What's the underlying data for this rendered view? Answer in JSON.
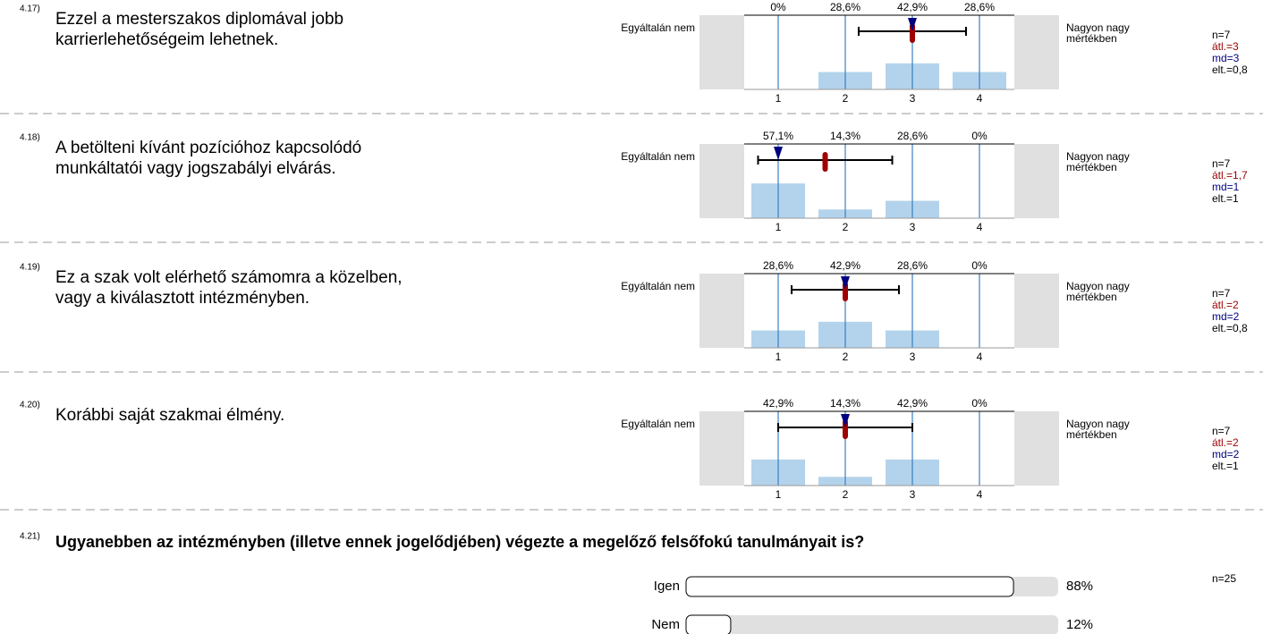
{
  "items": [
    {
      "number": "4.17)",
      "text": [
        "Ezzel a mesterszakos diplomával jobb",
        "karrierlehetőségeim lehetnek."
      ],
      "values": [
        0,
        28.6,
        42.9,
        28.6
      ],
      "value_labels": [
        "0%",
        "28,6%",
        "42,9%",
        "28,6%"
      ],
      "scale": [
        1,
        2,
        3,
        4
      ],
      "left_label": "Egyáltalán nem",
      "right_label": [
        "Nagyon nagy",
        "mértékben"
      ],
      "n": "n=7",
      "mean": {
        "value": 3,
        "label": "átl.=3"
      },
      "median": {
        "value": 3,
        "label": "md=3"
      },
      "sd": {
        "value": 0.8,
        "label": "elt.=0,8"
      }
    },
    {
      "number": "4.18)",
      "text": [
        "A betölteni kívánt pozícióhoz kapcsolódó",
        "munkáltatói vagy jogszabályi elvárás."
      ],
      "values": [
        57.1,
        14.3,
        28.6,
        0
      ],
      "value_labels": [
        "57,1%",
        "14,3%",
        "28,6%",
        "0%"
      ],
      "scale": [
        1,
        2,
        3,
        4
      ],
      "left_label": "Egyáltalán nem",
      "right_label": [
        "Nagyon nagy",
        "mértékben"
      ],
      "n": "n=7",
      "mean": {
        "value": 1.7,
        "label": "átl.=1,7"
      },
      "median": {
        "value": 1,
        "label": "md=1"
      },
      "sd": {
        "value": 1,
        "label": "elt.=1"
      }
    },
    {
      "number": "4.19)",
      "text": [
        "Ez a szak volt elérhető számomra a közelben,",
        "vagy a kiválasztott intézményben."
      ],
      "values": [
        28.6,
        42.9,
        28.6,
        0
      ],
      "value_labels": [
        "28,6%",
        "42,9%",
        "28,6%",
        "0%"
      ],
      "scale": [
        1,
        2,
        3,
        4
      ],
      "left_label": "Egyáltalán nem",
      "right_label": [
        "Nagyon nagy",
        "mértékben"
      ],
      "n": "n=7",
      "mean": {
        "value": 2,
        "label": "átl.=2"
      },
      "median": {
        "value": 2,
        "label": "md=2"
      },
      "sd": {
        "value": 0.8,
        "label": "elt.=0,8"
      }
    },
    {
      "number": "4.20)",
      "text": [
        "Korábbi saját szakmai élmény."
      ],
      "values": [
        42.9,
        14.3,
        42.9,
        0
      ],
      "value_labels": [
        "42,9%",
        "14,3%",
        "42,9%",
        "0%"
      ],
      "scale": [
        1,
        2,
        3,
        4
      ],
      "left_label": "Egyáltalán nem",
      "right_label": [
        "Nagyon nagy",
        "mértékben"
      ],
      "n": "n=7",
      "mean": {
        "value": 2,
        "label": "átl.=2"
      },
      "median": {
        "value": 2,
        "label": "md=2"
      },
      "sd": {
        "value": 1,
        "label": "elt.=1"
      }
    }
  ],
  "question": {
    "number": "4.21)",
    "text": "Ugyanebben az intézményben (illetve ennek jogelődjében) végezte a megelőző felsőfokú tanulmányait is?",
    "n": "n=25",
    "options": [
      {
        "label": "Igen",
        "value": 88,
        "value_label": "88%"
      },
      {
        "label": "Nem",
        "value": 12,
        "value_label": "12%"
      }
    ]
  }
}
